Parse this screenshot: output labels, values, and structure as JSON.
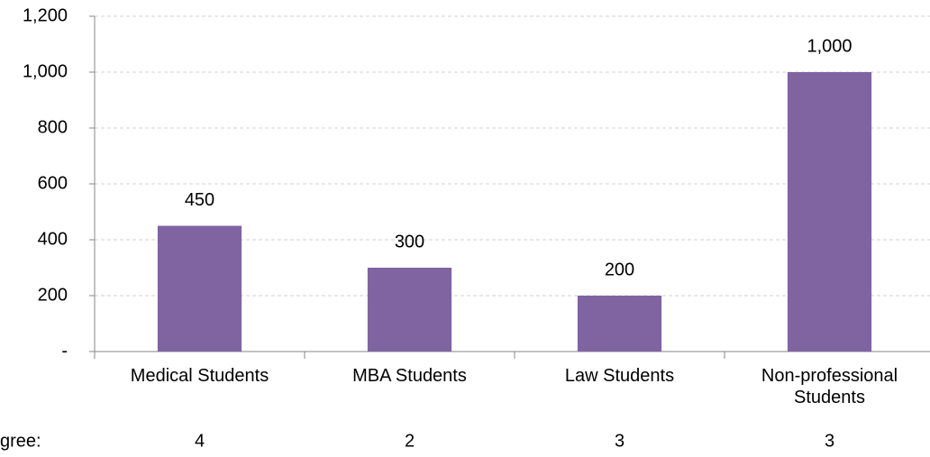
{
  "chart_data": {
    "type": "bar",
    "categories": [
      "Medical Students",
      "MBA Students",
      "Law Students",
      "Non-professional Students"
    ],
    "values": [
      450,
      300,
      200,
      1000
    ],
    "value_labels": [
      "450",
      "300",
      "200",
      "1,000"
    ],
    "color": "#8064a2",
    "ylim": [
      0,
      1200
    ],
    "yticks": [
      {
        "value": 0,
        "label": "-"
      },
      200,
      400,
      600,
      800,
      {
        "value": 1000,
        "label": "1,000"
      },
      {
        "value": 1200,
        "label": "1,200"
      }
    ],
    "grid": true,
    "extra_row": {
      "label": "gree:",
      "values": [
        4,
        2,
        3,
        3
      ]
    }
  }
}
